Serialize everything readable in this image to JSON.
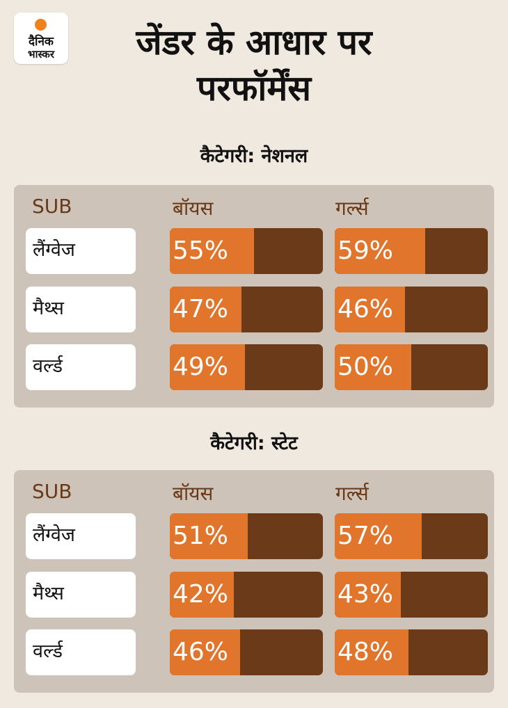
{
  "brand": {
    "logo_line1": "दैनिक",
    "logo_line2": "भास्कर",
    "dot_color": "#f0821e"
  },
  "title": "जेंडर के आधार पर परफॉर्मेंस",
  "colors": {
    "fill": "#e0752b",
    "track": "#6b3a18",
    "panel": "#cdc3b9",
    "header_text": "#6a3a18"
  },
  "chart_data": [
    {
      "type": "bar",
      "title": "कैटेगरी: नेशनल",
      "column_header": "SUB",
      "categories": [
        "लैंग्वेज",
        "मैथ्स",
        "वर्ल्ड"
      ],
      "series": [
        {
          "name": "बॉयस",
          "values": [
            55,
            47,
            49
          ],
          "labels": [
            "55%",
            "47%",
            "49%"
          ]
        },
        {
          "name": "गर्ल्स",
          "values": [
            59,
            46,
            50
          ],
          "labels": [
            "59%",
            "46%",
            "50%"
          ]
        }
      ],
      "ylim": [
        0,
        100
      ]
    },
    {
      "type": "bar",
      "title": "कैटेगरी: स्टेट",
      "column_header": "SUB",
      "categories": [
        "लैंग्वेज",
        "मैथ्स",
        "वर्ल्ड"
      ],
      "series": [
        {
          "name": "बॉयस",
          "values": [
            51,
            42,
            46
          ],
          "labels": [
            "51%",
            "42%",
            "46%"
          ]
        },
        {
          "name": "गर्ल्स",
          "values": [
            57,
            43,
            48
          ],
          "labels": [
            "57%",
            "43%",
            "48%"
          ]
        }
      ],
      "ylim": [
        0,
        100
      ]
    }
  ]
}
